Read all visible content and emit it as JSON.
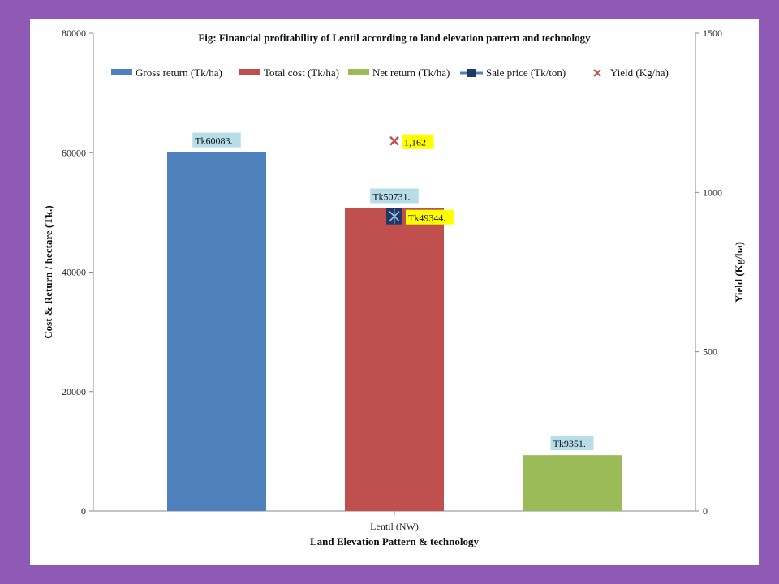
{
  "chart_data": {
    "type": "bar",
    "title": "Fig: Financial profitability of Lentil according to land elevation pattern and technology",
    "xlabel": "Land Elevation Pattern & technology",
    "ylabel": "Cost & Return / hectare (Tk.)",
    "ylabel_right": "Yield (Kg/ha)",
    "categories": [
      "Lentil (NW)"
    ],
    "ylim": [
      0,
      80000
    ],
    "yticks": [
      "0",
      "20000",
      "40000",
      "60000",
      "80000"
    ],
    "ylim_right": [
      0,
      1500
    ],
    "yticks_right": [
      "0",
      "500",
      "1000",
      "1500"
    ],
    "grid": false,
    "legend_position": "top",
    "series": [
      {
        "name": "Gross return (Tk/ha)",
        "type": "bar",
        "axis": "left",
        "color": "#4f81bd",
        "values": [
          60083
        ],
        "label": "Tk60083.",
        "label_bg": "#b7dde8"
      },
      {
        "name": "Total cost (Tk/ha)",
        "type": "bar",
        "axis": "left",
        "color": "#c0504d",
        "values": [
          50731
        ],
        "label": "Tk50731.",
        "label_bg": "#b7dde8"
      },
      {
        "name": "Net return (Tk/ha)",
        "type": "bar",
        "axis": "left",
        "color": "#9bbb59",
        "values": [
          9351
        ],
        "label": "Tk9351.",
        "label_bg": "#b7dde8"
      },
      {
        "name": "Sale price (Tk/ton)",
        "type": "marker",
        "axis": "left",
        "color": "#1f3864",
        "values": [
          49344
        ],
        "label": "Tk49344.",
        "label_bg": "#ffff00"
      },
      {
        "name": "Yield (Kg/ha)",
        "type": "marker",
        "axis": "right",
        "color": "#c0504d",
        "values": [
          1162
        ],
        "label": "1,162",
        "label_bg": "#ffff00"
      }
    ]
  }
}
